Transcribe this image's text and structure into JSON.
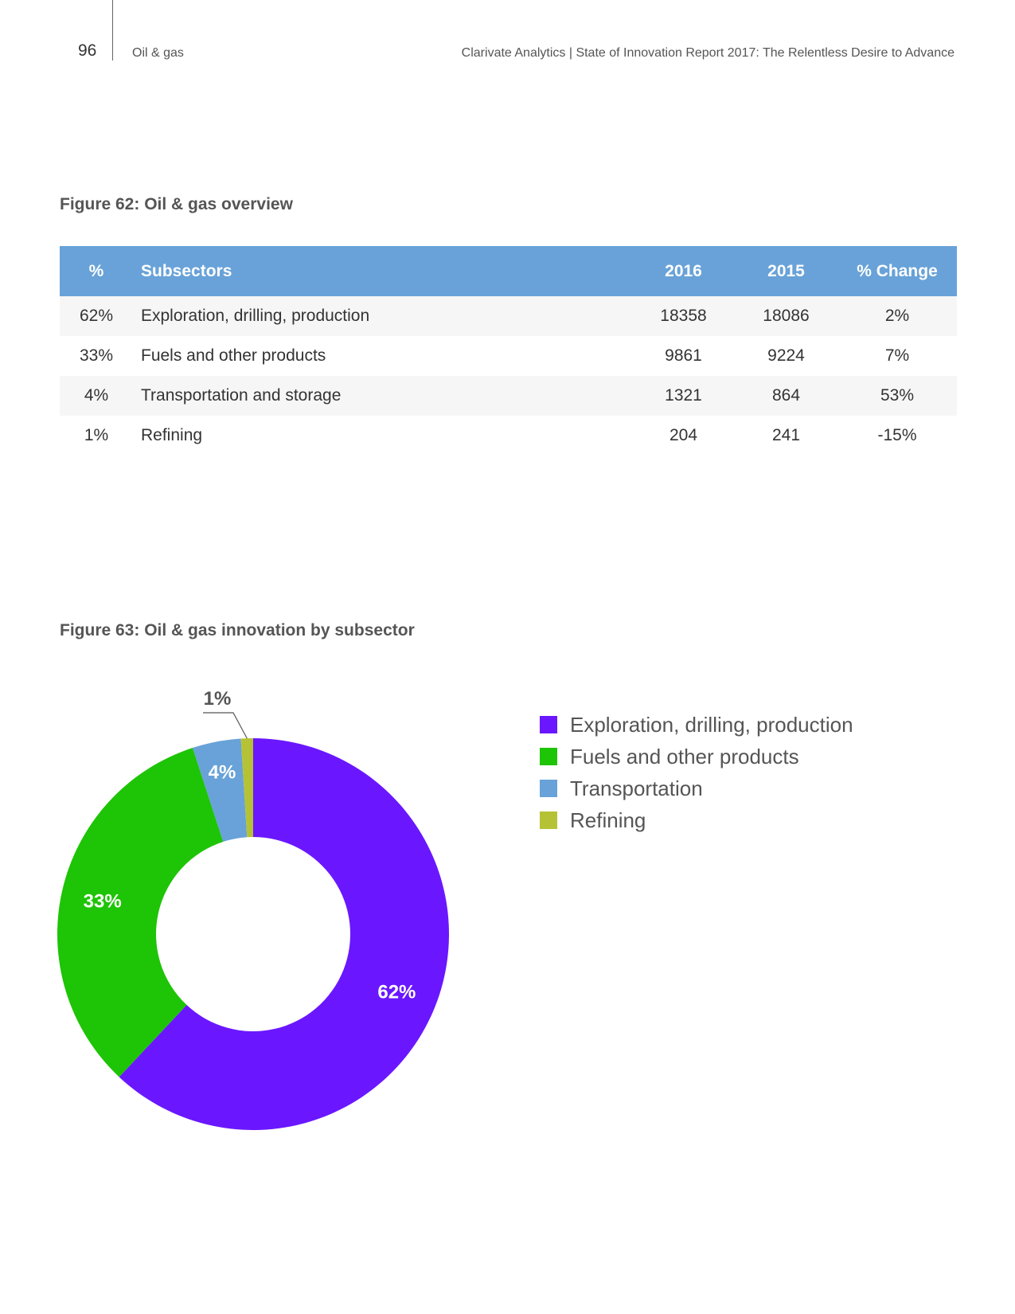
{
  "header": {
    "page_number": "96",
    "section": "Oil & gas",
    "report_title": "Clarivate Analytics | State of Innovation Report 2017: The Relentless Desire to Advance"
  },
  "figure62": {
    "title": "Figure 62: Oil & gas overview",
    "columns": [
      "%",
      "Subsectors",
      "2016",
      "2015",
      "% Change"
    ],
    "rows": [
      {
        "pct": "62%",
        "subsector": "Exploration, drilling, production",
        "y2016": "18358",
        "y2015": "18086",
        "change": "2%"
      },
      {
        "pct": "33%",
        "subsector": "Fuels and other products",
        "y2016": "9861",
        "y2015": "9224",
        "change": "7%"
      },
      {
        "pct": "4%",
        "subsector": "Transportation and storage",
        "y2016": "1321",
        "y2015": "864",
        "change": "53%"
      },
      {
        "pct": "1%",
        "subsector": "Refining",
        "y2016": "204",
        "y2015": "241",
        "change": "-15%"
      }
    ]
  },
  "figure63": {
    "title": "Figure 63: Oil & gas innovation by subsector"
  },
  "chart_data": {
    "type": "pie",
    "donut": true,
    "title": "Figure 63: Oil & gas innovation by subsector",
    "legend_position": "right",
    "slices": [
      {
        "label": "Exploration, drilling, production",
        "value": 62,
        "value_label": "62%",
        "color": "#6a17ff"
      },
      {
        "label": "Fuels and other products",
        "value": 33,
        "value_label": "33%",
        "color": "#1ec406"
      },
      {
        "label": "Transportation",
        "value": 4,
        "value_label": "4%",
        "color": "#68a2d8"
      },
      {
        "label": "Refining",
        "value": 1,
        "value_label": "1%",
        "color": "#b5c235"
      }
    ]
  }
}
